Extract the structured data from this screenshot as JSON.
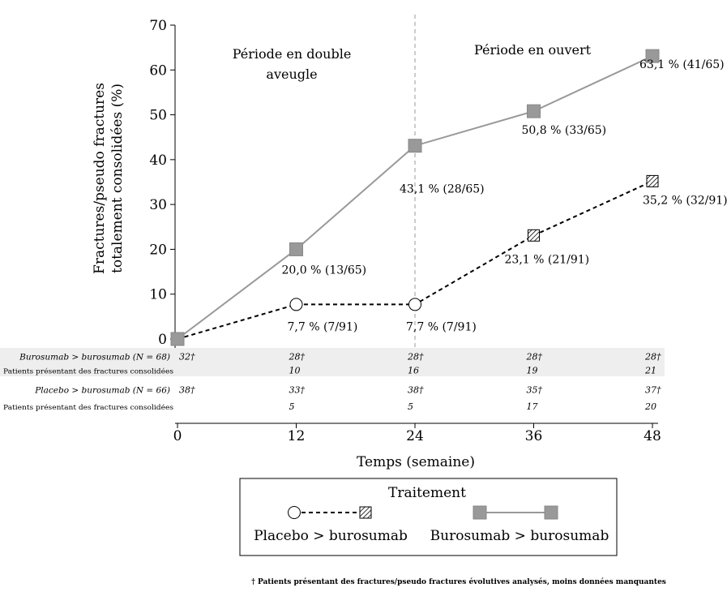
{
  "chart_data": {
    "type": "line",
    "ylabel_lines": [
      "Fractures/pseudo fractures",
      "totalement consolidées (%)"
    ],
    "xlabel": "Temps (semaine)",
    "x": [
      0,
      12,
      24,
      36,
      48
    ],
    "xlim": [
      0,
      48
    ],
    "ylim": [
      0,
      70
    ],
    "yticks": [
      0,
      10,
      20,
      30,
      40,
      50,
      60,
      70
    ],
    "grid": false,
    "period_labels": {
      "left_lines": [
        "Période en double",
        "aveugle"
      ],
      "right": "Période en ouvert"
    },
    "divider_x": 24,
    "series": [
      {
        "name": "Burosumab > burosumab",
        "values": [
          0,
          20.0,
          43.1,
          50.8,
          63.1
        ],
        "labels": [
          "",
          "20,0 % (13/65)",
          "43,1 % (28/65)",
          "50,8 % (33/65)",
          "63,1 % (41/65)"
        ],
        "color": "#999999",
        "line_style": "solid",
        "markers": [
          "square",
          "square",
          "square",
          "square",
          "square"
        ]
      },
      {
        "name": "Placebo > burosumab",
        "values": [
          0,
          7.7,
          7.7,
          23.1,
          35.2
        ],
        "labels": [
          "",
          "7,7 % (7/91)",
          "7,7 % (7/91)",
          "23,1 % (21/91)",
          "35,2 % (32/91)"
        ],
        "color": "#000000",
        "line_style": "dashed",
        "markers": [
          "square",
          "circle",
          "circle",
          "hatched-square",
          "hatched-square"
        ]
      }
    ],
    "table": [
      {
        "group": "Burosumab > burosumab (N = 68)",
        "analyzed": [
          "32†",
          "28†",
          "28†",
          "28†",
          "28†"
        ],
        "row2_label": "Patients présentant des fractures consolidées",
        "healed": [
          "",
          "10",
          "16",
          "19",
          "21"
        ]
      },
      {
        "group": "Placebo > burosumab (N = 66)",
        "analyzed": [
          "38†",
          "33†",
          "38†",
          "35†",
          "37†"
        ],
        "row2_label": "Patients présentant des fractures consolidées",
        "healed": [
          "",
          "5",
          "5",
          "17",
          "20"
        ]
      }
    ],
    "legend": {
      "title": "Traitement",
      "position": "bottom"
    },
    "footnote": "† Patients présentant des fractures/pseudo fractures évolutives analysés, moins données manquantes"
  }
}
